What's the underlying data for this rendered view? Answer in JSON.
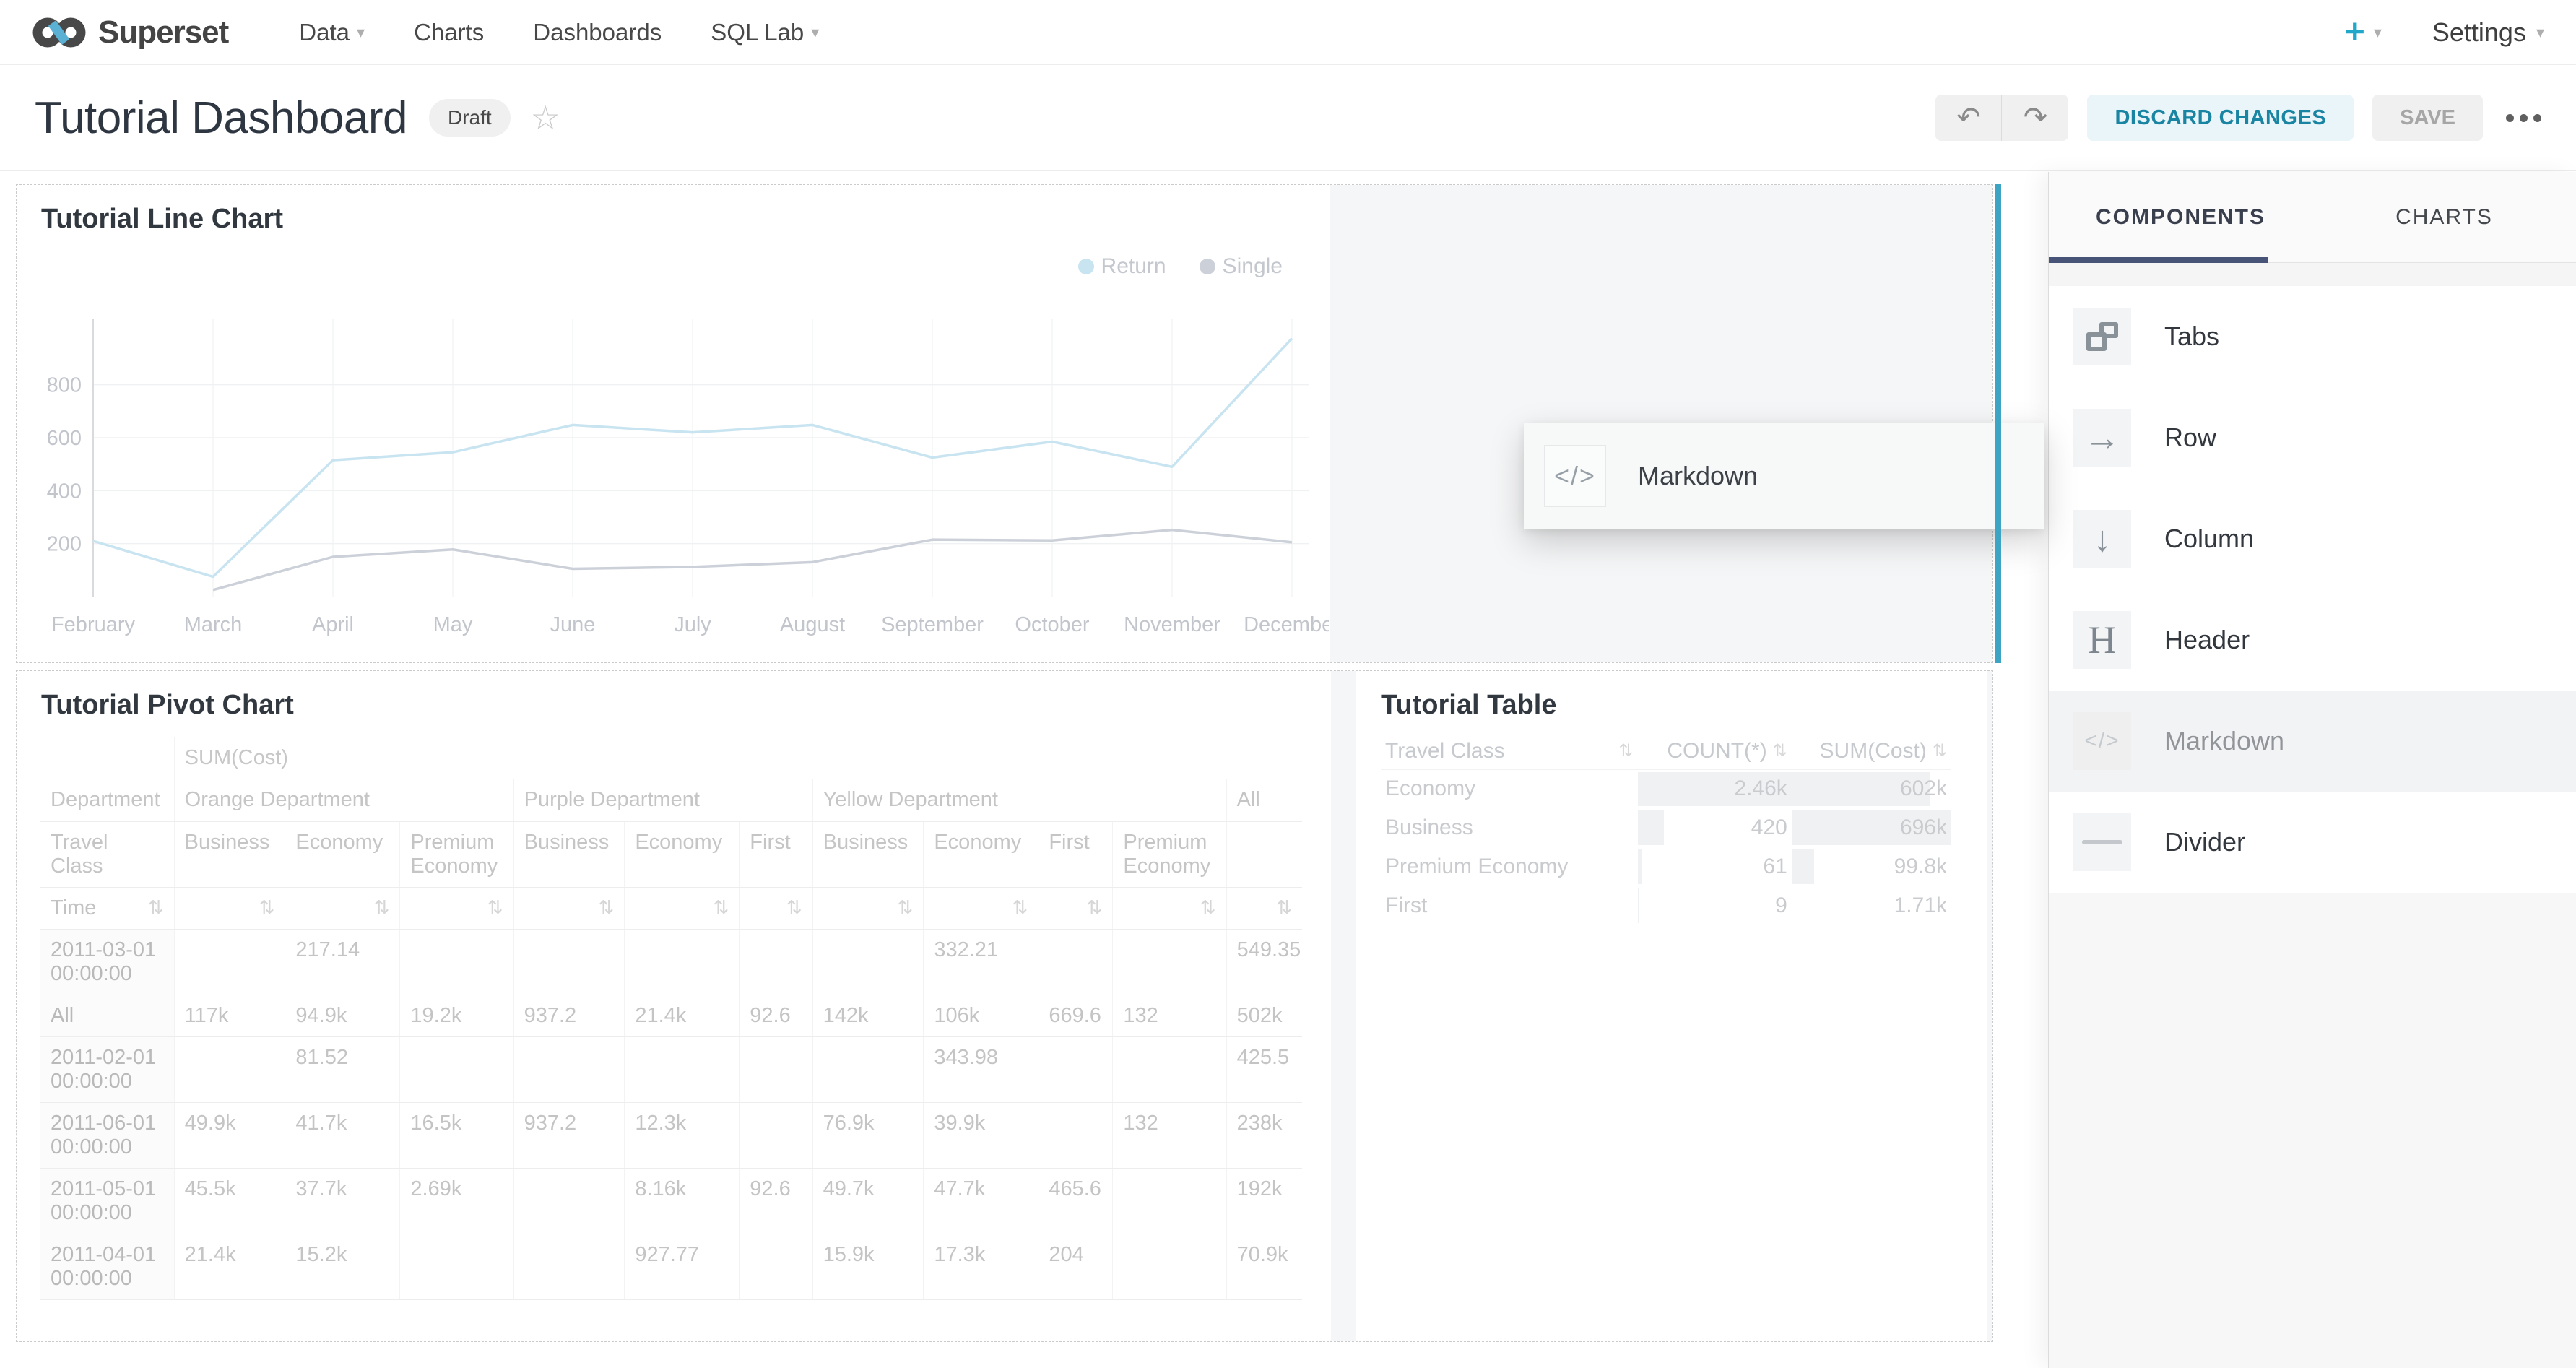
{
  "colors": {
    "accent": "#20a7c9",
    "drop_indicator": "#3ea4c4",
    "tab_underline": "#475478",
    "discard_bg": "#e9f5f9",
    "discard_text": "#1a85a3"
  },
  "navbar": {
    "brand": "Superset",
    "items": [
      {
        "label": "Data",
        "caret": true
      },
      {
        "label": "Charts",
        "caret": false
      },
      {
        "label": "Dashboards",
        "caret": false
      },
      {
        "label": "SQL Lab",
        "caret": true
      }
    ],
    "plus_label": "+",
    "settings_label": "Settings"
  },
  "header": {
    "title": "Tutorial Dashboard",
    "status_badge": "Draft",
    "discard_label": "DISCARD CHANGES",
    "save_label": "SAVE"
  },
  "chart_data": {
    "type": "line",
    "title": "Tutorial Line Chart",
    "categories": [
      "February",
      "March",
      "April",
      "May",
      "June",
      "July",
      "August",
      "September",
      "October",
      "November",
      "December"
    ],
    "series": [
      {
        "name": "Return",
        "color": "#c8e4f1",
        "values": [
          210,
          75,
          515,
          545,
          648,
          620,
          648,
          525,
          585,
          490,
          975
        ]
      },
      {
        "name": "Single",
        "color": "#ccd0d8",
        "values": [
          null,
          25,
          150,
          178,
          105,
          112,
          130,
          215,
          212,
          252,
          205
        ]
      }
    ],
    "ylim": [
      0,
      1050
    ],
    "yticks": [
      200,
      400,
      600,
      800
    ],
    "grid": true,
    "legend_position": "top-right"
  },
  "line_chart": {
    "title": "Tutorial Line Chart"
  },
  "pivot_chart": {
    "title": "Tutorial Pivot Chart",
    "measure_label": "SUM(Cost)",
    "department_label": "Department",
    "travel_class_label": "Travel Class",
    "time_label": "Time",
    "groups": [
      {
        "label": "Orange Department",
        "children": [
          "Business",
          "Economy",
          "Premium Economy"
        ]
      },
      {
        "label": "Purple Department",
        "children": [
          "Business",
          "Economy",
          "First"
        ]
      },
      {
        "label": "Yellow Department",
        "children": [
          "Business",
          "Economy",
          "First",
          "Premium Economy"
        ]
      },
      {
        "label": "All",
        "children": [
          ""
        ]
      }
    ],
    "rows": [
      {
        "time": "2011-03-01 00:00:00",
        "values": [
          "",
          "217.14",
          "",
          "",
          "",
          "",
          "",
          "332.21",
          "",
          "",
          "549.35"
        ]
      },
      {
        "time": "All",
        "values": [
          "117k",
          "94.9k",
          "19.2k",
          "937.2",
          "21.4k",
          "92.6",
          "142k",
          "106k",
          "669.6",
          "132",
          "502k"
        ]
      },
      {
        "time": "2011-02-01 00:00:00",
        "values": [
          "",
          "81.52",
          "",
          "",
          "",
          "",
          "",
          "343.98",
          "",
          "",
          "425.5"
        ]
      },
      {
        "time": "2011-06-01 00:00:00",
        "values": [
          "49.9k",
          "41.7k",
          "16.5k",
          "937.2",
          "12.3k",
          "",
          "76.9k",
          "39.9k",
          "",
          "132",
          "238k"
        ]
      },
      {
        "time": "2011-05-01 00:00:00",
        "values": [
          "45.5k",
          "37.7k",
          "2.69k",
          "",
          "8.16k",
          "92.6",
          "49.7k",
          "47.7k",
          "465.6",
          "",
          "192k"
        ]
      },
      {
        "time": "2011-04-01 00:00:00",
        "values": [
          "21.4k",
          "15.2k",
          "",
          "",
          "927.77",
          "",
          "15.9k",
          "17.3k",
          "204",
          "",
          "70.9k"
        ]
      }
    ]
  },
  "table_chart": {
    "title": "Tutorial Table",
    "columns": [
      "Travel Class",
      "COUNT(*)",
      "SUM(Cost)"
    ],
    "rows": [
      {
        "travel_class": "Economy",
        "count_display": "2.46k",
        "count": 2460,
        "sum_display": "602k",
        "sum": 602000
      },
      {
        "travel_class": "Business",
        "count_display": "420",
        "count": 420,
        "sum_display": "696k",
        "sum": 696000
      },
      {
        "travel_class": "Premium Economy",
        "count_display": "61",
        "count": 61,
        "sum_display": "99.8k",
        "sum": 99800
      },
      {
        "travel_class": "First",
        "count_display": "9",
        "count": 9,
        "sum_display": "1.71k",
        "sum": 1710
      }
    ]
  },
  "sidebar": {
    "tabs": [
      {
        "label": "COMPONENTS",
        "active": true
      },
      {
        "label": "CHARTS",
        "active": false
      }
    ],
    "items": [
      {
        "label": "Tabs",
        "icon": "tabs-icon"
      },
      {
        "label": "Row",
        "icon": "row-icon"
      },
      {
        "label": "Column",
        "icon": "column-icon"
      },
      {
        "label": "Header",
        "icon": "header-icon"
      },
      {
        "label": "Markdown",
        "icon": "markdown-icon",
        "dragging": true
      },
      {
        "label": "Divider",
        "icon": "divider-icon"
      }
    ]
  },
  "drag_preview": {
    "label": "Markdown",
    "icon": "markdown-icon"
  }
}
